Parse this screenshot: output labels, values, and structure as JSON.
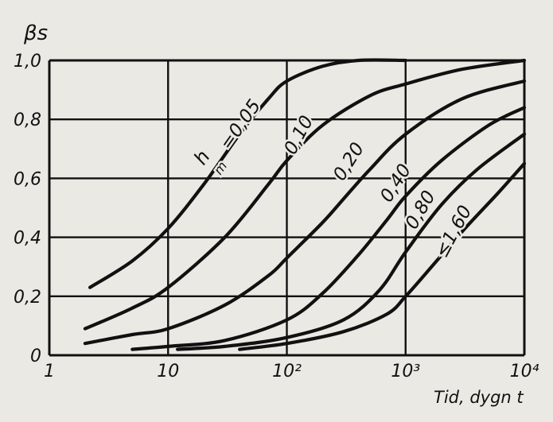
{
  "chart_data": {
    "type": "line",
    "title": "",
    "ylabel": "βs",
    "xlabel": "Tid, dygn t",
    "xscale": "log",
    "xlim": [
      1,
      10000
    ],
    "ylim": [
      0,
      1.0
    ],
    "grid": true,
    "x_ticks": [
      "1",
      "10",
      "10²",
      "10³",
      "10⁴"
    ],
    "y_ticks": [
      "0",
      "0,2",
      "0,4",
      "0,6",
      "0,8",
      "1,0"
    ],
    "series": [
      {
        "name": "h_m = 0,05",
        "x": [
          2.2,
          5,
          10,
          20,
          40,
          70,
          100,
          200,
          400,
          1000
        ],
        "y": [
          0.23,
          0.32,
          0.43,
          0.58,
          0.75,
          0.87,
          0.93,
          0.98,
          1.0,
          1.0
        ]
      },
      {
        "name": "0,10",
        "x": [
          2,
          5,
          10,
          30,
          70,
          100,
          200,
          500,
          1000,
          3000,
          10000
        ],
        "y": [
          0.09,
          0.16,
          0.23,
          0.4,
          0.58,
          0.66,
          0.78,
          0.88,
          0.92,
          0.97,
          1.0
        ]
      },
      {
        "name": "0,20",
        "x": [
          2,
          5,
          10,
          30,
          70,
          100,
          200,
          300,
          500,
          1000,
          3000,
          10000
        ],
        "y": [
          0.04,
          0.07,
          0.09,
          0.17,
          0.27,
          0.33,
          0.45,
          0.53,
          0.63,
          0.75,
          0.87,
          0.93
        ]
      },
      {
        "name": "0,40",
        "x": [
          5,
          10,
          30,
          100,
          200,
          400,
          700,
          1000,
          2000,
          5000,
          10000
        ],
        "y": [
          0.02,
          0.03,
          0.05,
          0.12,
          0.21,
          0.34,
          0.46,
          0.54,
          0.66,
          0.78,
          0.84
        ]
      },
      {
        "name": "0,80",
        "x": [
          12,
          30,
          100,
          300,
          600,
          1000,
          2000,
          4000,
          10000
        ],
        "y": [
          0.02,
          0.03,
          0.06,
          0.12,
          0.22,
          0.35,
          0.51,
          0.63,
          0.75
        ]
      },
      {
        "name": "≤1,60",
        "x": [
          40,
          100,
          300,
          700,
          1000,
          1500,
          3000,
          6000,
          10000
        ],
        "y": [
          0.02,
          0.04,
          0.08,
          0.14,
          0.2,
          0.28,
          0.42,
          0.55,
          0.65
        ]
      }
    ],
    "curve_labels": [
      "h",
      "m",
      "=0,05",
      "0,10",
      "0,20",
      "0,40",
      "0,80",
      "≤1,60"
    ]
  }
}
